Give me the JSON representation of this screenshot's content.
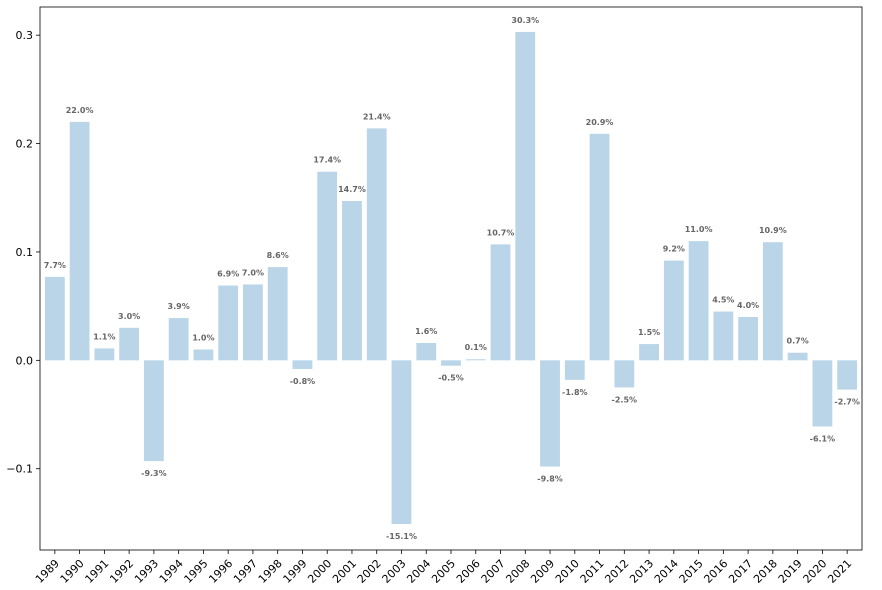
{
  "chart_data": {
    "type": "bar",
    "title": "",
    "xlabel": "",
    "ylabel": "",
    "ylim": [
      -0.175,
      0.326
    ],
    "yticks": [
      -0.1,
      0.0,
      0.1,
      0.2,
      0.3
    ],
    "ytick_labels": [
      "−0.1",
      "0.0",
      "0.1",
      "0.2",
      "0.3"
    ],
    "grid": false,
    "bar_color": "#bad5e8",
    "categories": [
      "1989",
      "1990",
      "1991",
      "1992",
      "1993",
      "1994",
      "1995",
      "1996",
      "1997",
      "1998",
      "1999",
      "2000",
      "2001",
      "2002",
      "2003",
      "2004",
      "2005",
      "2006",
      "2007",
      "2008",
      "2009",
      "2010",
      "2011",
      "2012",
      "2013",
      "2014",
      "2015",
      "2016",
      "2017",
      "2018",
      "2019",
      "2020",
      "2021"
    ],
    "values": [
      0.077,
      0.22,
      0.011,
      0.03,
      -0.093,
      0.039,
      0.01,
      0.069,
      0.07,
      0.086,
      -0.008,
      0.174,
      0.147,
      0.214,
      -0.151,
      0.016,
      -0.005,
      0.001,
      0.107,
      0.303,
      -0.098,
      -0.018,
      0.209,
      -0.025,
      0.015,
      0.092,
      0.11,
      0.045,
      0.04,
      0.109,
      0.007,
      -0.061,
      -0.027
    ],
    "data_labels": [
      "7.7%",
      "22.0%",
      "1.1%",
      "3.0%",
      "-9.3%",
      "3.9%",
      "1.0%",
      "6.9%",
      "7.0%",
      "8.6%",
      "-0.8%",
      "17.4%",
      "14.7%",
      "21.4%",
      "-15.1%",
      "1.6%",
      "-0.5%",
      "0.1%",
      "10.7%",
      "30.3%",
      "-9.8%",
      "-1.8%",
      "20.9%",
      "-2.5%",
      "1.5%",
      "9.2%",
      "11.0%",
      "4.5%",
      "4.0%",
      "10.9%",
      "0.7%",
      "-6.1%",
      "-2.7%"
    ]
  }
}
